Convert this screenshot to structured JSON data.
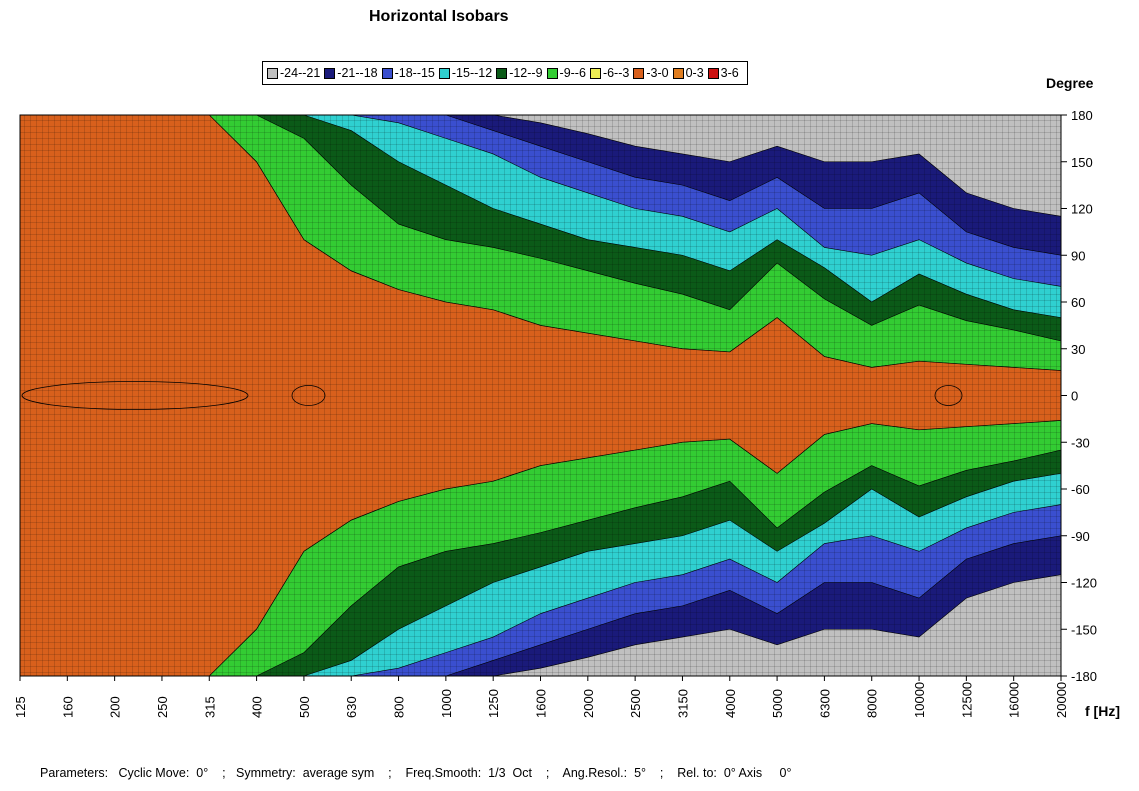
{
  "chart_data": {
    "type": "heatmap",
    "title": "Horizontal Isobars",
    "xlabel": "f [Hz]",
    "ylabel": "Degree",
    "x_scale": "log",
    "x_categories": [
      "125",
      "160",
      "200",
      "250",
      "315",
      "400",
      "500",
      "630",
      "800",
      "1000",
      "1250",
      "1600",
      "2000",
      "2500",
      "3150",
      "4000",
      "5000",
      "6300",
      "8000",
      "10000",
      "12500",
      "16000",
      "20000"
    ],
    "y_ticks": [
      180,
      150,
      120,
      90,
      60,
      30,
      0,
      -30,
      -60,
      -90,
      -120,
      -150,
      -180
    ],
    "ylim": [
      -180,
      180
    ],
    "grid": true,
    "legend_position": "top-center",
    "levels": [
      {
        "label": "-24--21",
        "min": -24,
        "max": -21,
        "color": "#c0c0c0"
      },
      {
        "label": "-21--18",
        "min": -21,
        "max": -18,
        "color": "#1a1a7a"
      },
      {
        "label": "-18--15",
        "min": -18,
        "max": -15,
        "color": "#3a4fcf"
      },
      {
        "label": "-15--12",
        "min": -15,
        "max": -12,
        "color": "#2fd0d0"
      },
      {
        "label": "-12--9",
        "min": -12,
        "max": -9,
        "color": "#0b5a18"
      },
      {
        "label": "-9--6",
        "min": -9,
        "max": -6,
        "color": "#33cc33"
      },
      {
        "label": "-6--3",
        "min": -6,
        "max": -3,
        "color": "#eeee55"
      },
      {
        "label": "-3-0",
        "min": -3,
        "max": 0,
        "color": "#d8601c"
      },
      {
        "label": "0-3",
        "min": 0,
        "max": 3,
        "color": "#e07d1f"
      },
      {
        "label": "3-6",
        "min": 3,
        "max": 6,
        "color": "#cc1111"
      }
    ],
    "level_contours_deg": {
      "comment": "angle (degrees, upper half, symmetric) at which each level boundary is crossed, per frequency",
      "b3": [
        180,
        180,
        180,
        180,
        180,
        150,
        100,
        80,
        68,
        60,
        55,
        45,
        40,
        35,
        30,
        28,
        50,
        25,
        18,
        22,
        20,
        18,
        16
      ],
      "b6": [
        180,
        180,
        180,
        180,
        180,
        180,
        165,
        135,
        110,
        100,
        95,
        88,
        80,
        72,
        65,
        55,
        85,
        62,
        45,
        58,
        48,
        42,
        35
      ],
      "b9": [
        180,
        180,
        180,
        180,
        180,
        180,
        180,
        170,
        150,
        135,
        120,
        110,
        100,
        95,
        90,
        80,
        100,
        82,
        60,
        78,
        65,
        55,
        50
      ],
      "b12": [
        180,
        180,
        180,
        180,
        180,
        180,
        180,
        180,
        175,
        165,
        155,
        140,
        130,
        120,
        115,
        105,
        120,
        95,
        90,
        100,
        85,
        75,
        70
      ],
      "b15": [
        180,
        180,
        180,
        180,
        180,
        180,
        180,
        180,
        180,
        180,
        170,
        160,
        150,
        140,
        135,
        125,
        140,
        120,
        120,
        130,
        105,
        95,
        90
      ],
      "b18": [
        180,
        180,
        180,
        180,
        180,
        180,
        180,
        180,
        180,
        180,
        180,
        175,
        168,
        160,
        155,
        150,
        160,
        150,
        150,
        155,
        130,
        120,
        115
      ]
    },
    "contour_label_0dB_regions": [
      "125-315 Hz near 0°",
      "500 Hz near 0°",
      "12500 Hz near 0°"
    ]
  },
  "footer": {
    "parameters": "Parameters:   Cyclic Move:  0°    ;   Symmetry:  average sym    ;    Freq.Smooth:  1/3  Oct    ;    Ang.Resol.:  5°    ;    Rel. to:  0° Axis     0°"
  }
}
